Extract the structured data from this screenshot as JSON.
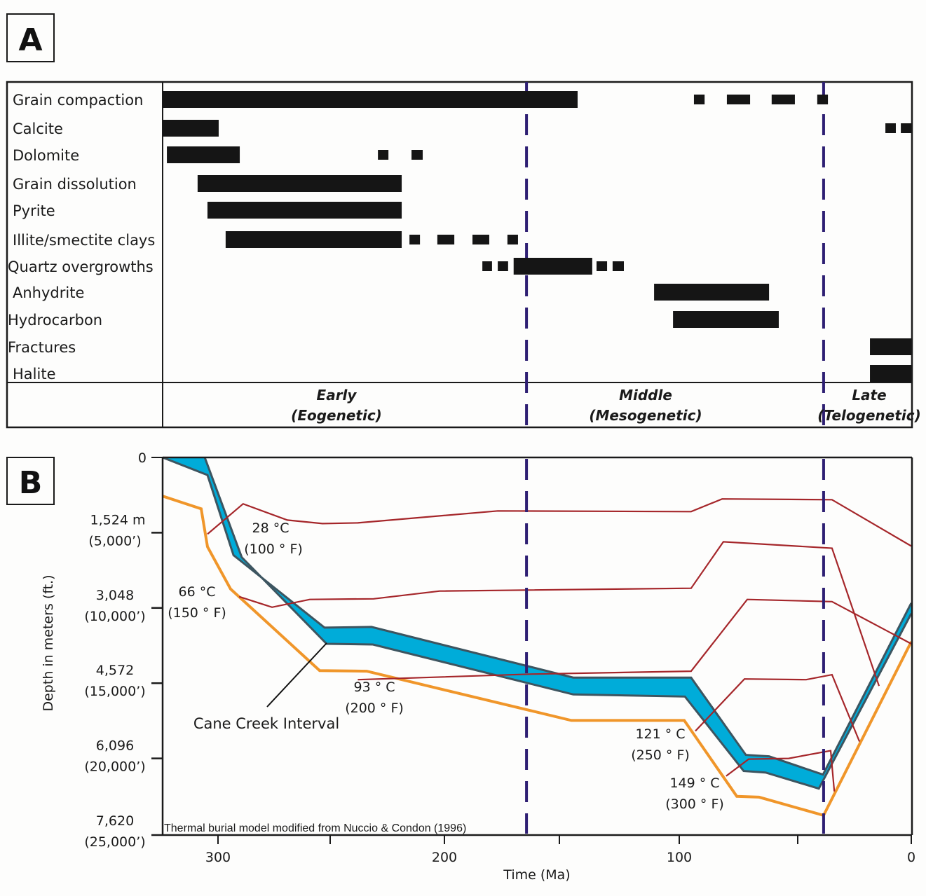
{
  "colors": {
    "bar": "#151515",
    "stage_divider": "#2e1f73",
    "cane_creek_fill": "#00acd9",
    "cane_creek_edge": "#3d5560",
    "orange_base": "#f0962a",
    "isotherm": "#a5262a",
    "frame": "#1a1a1a"
  },
  "chart_data": [
    {
      "type": "bar",
      "subtype": "gantt-timeline",
      "panel_label": "A",
      "title": "",
      "xlabel": "Time (Ma)",
      "xlim": [
        324.7,
        0
      ],
      "categories": [
        "Grain compaction",
        "Calcite",
        "Dolomite",
        "Grain dissolution",
        "Pyrite",
        "Illite/smectite clays",
        "Quartz overgrowths",
        "Anhydrite",
        "Hydrocarbon",
        "Fractures",
        "Halite"
      ],
      "series": [
        {
          "name": "Grain compaction",
          "solid": [
            [
              324.7,
              142.4
            ]
          ],
          "dashed": [
            [
              93.8,
              89.3
            ],
            [
              79.9,
              70.1
            ],
            [
              61.0,
              51.2
            ],
            [
              41.4,
              36.7
            ]
          ]
        },
        {
          "name": "Calcite",
          "solid": [
            [
              324.7,
              299.7
            ]
          ],
          "dashed": [
            [
              11.4,
              6.8
            ],
            [
              4.6,
              0
            ]
          ]
        },
        {
          "name": "Dolomite",
          "solid": [
            [
              322.8,
              290.3
            ]
          ],
          "dashed_small": [
            [
              229.1,
              224.5
            ],
            [
              214.4,
              209.5
            ]
          ]
        },
        {
          "name": "Grain dissolution",
          "solid": [
            [
              309.1,
              218.7
            ]
          ],
          "dashed": []
        },
        {
          "name": "Pyrite",
          "solid": [
            [
              304.7,
              218.7
            ]
          ],
          "dashed": []
        },
        {
          "name": "Illite/smectite clays",
          "solid": [
            [
              296.6,
              218.7
            ]
          ],
          "dashed": [
            [
              215.3,
              210.7
            ],
            [
              203.1,
              195.7
            ],
            [
              187.8,
              180.5
            ],
            [
              172.6,
              168.0
            ]
          ]
        },
        {
          "name": "Quartz overgrowths",
          "solid": [
            [
              169.9,
              136.3
            ]
          ],
          "dashed": [
            [
              183.5,
              179.3
            ],
            [
              176.8,
              172.3
            ],
            [
              134.5,
              130.1
            ],
            [
              127.8,
              123.1
            ]
          ]
        },
        {
          "name": "Anhydrite",
          "solid": [
            [
              110.5,
              62.1
            ]
          ],
          "dashed": []
        },
        {
          "name": "Hydrocarbon",
          "solid": [
            [
              102.6,
              58.0
            ]
          ],
          "dashed": []
        },
        {
          "name": "Fractures",
          "solid": [
            [
              18.2,
              0
            ]
          ],
          "dashed": []
        },
        {
          "name": "Halite",
          "solid": [
            [
              18.2,
              0
            ]
          ],
          "dashed": []
        }
      ],
      "stage_boundaries_ma": [
        164.3,
        38.6
      ],
      "stages": [
        {
          "name": "Early",
          "sub": "(Eogenetic)"
        },
        {
          "name": "Middle",
          "sub": "(Mesogenetic)"
        },
        {
          "name": "Late",
          "sub": "(Telogenetic)"
        }
      ]
    },
    {
      "type": "line",
      "subtype": "burial-history",
      "panel_label": "B",
      "xlabel": "Time (Ma)",
      "ylabel": "Depth in meters (ft.)",
      "xlim": [
        324.7,
        0
      ],
      "ylim": [
        0,
        7620
      ],
      "x_ticks": [
        300,
        250,
        200,
        150,
        100,
        50,
        0
      ],
      "x_tick_labels": [
        "300",
        "",
        "200",
        "",
        "100",
        "",
        "0"
      ],
      "y_ticks": [
        {
          "value": 0,
          "label": "0",
          "sub": ""
        },
        {
          "value": 1524,
          "label": "1,524 m",
          "sub": "(5,000’)"
        },
        {
          "value": 3048,
          "label": "3,048",
          "sub": "(10,000’)"
        },
        {
          "value": 4572,
          "label": "4,572",
          "sub": "(15,000’)"
        },
        {
          "value": 6096,
          "label": "6,096",
          "sub": "(20,000’)"
        },
        {
          "value": 7620,
          "label": "7,620",
          "sub": "(25,000’)"
        }
      ],
      "grid": false,
      "stage_boundaries_ma": [
        164.3,
        38.6
      ],
      "cane_creek_interval": {
        "name": "Cane Creek Interval",
        "top": [
          [
            324.7,
            0
          ],
          [
            304.7,
            356
          ],
          [
            293.1,
            1980
          ],
          [
            252.5,
            3447
          ],
          [
            231.9,
            3433
          ],
          [
            144.2,
            4458
          ],
          [
            95.0,
            4458
          ],
          [
            71.9,
            6025
          ],
          [
            62.1,
            6053
          ],
          [
            38.9,
            6424
          ],
          [
            0,
            2948
          ]
        ],
        "base": [
          [
            305.9,
            0
          ],
          [
            289.4,
            2022
          ],
          [
            251.6,
            3774
          ],
          [
            231.3,
            3789
          ],
          [
            144.2,
            4800
          ],
          [
            97.6,
            4843
          ],
          [
            72.8,
            6352
          ],
          [
            63.6,
            6381
          ],
          [
            40.7,
            6708
          ],
          [
            0,
            3162
          ]
        ]
      },
      "series": [
        {
          "name": "Deepest horizon (orange)",
          "points": [
            [
              324.7,
              783
            ],
            [
              307.5,
              1040
            ],
            [
              304.7,
              1809
            ],
            [
              294.4,
              2663
            ],
            [
              254.7,
              4316
            ],
            [
              234.0,
              4330
            ],
            [
              145.0,
              5327
            ],
            [
              97.9,
              5327
            ],
            [
              75.7,
              6865
            ],
            [
              66.3,
              6880
            ],
            [
              38.6,
              7250
            ],
            [
              0,
              3732
            ]
          ]
        },
        {
          "name": "28 °C isotherm",
          "points": [
            [
              304.7,
              1553
            ],
            [
              288.8,
              940
            ],
            [
              269.1,
              1268
            ],
            [
              253.4,
              1339
            ],
            [
              237.9,
              1325
            ],
            [
              176.8,
              1082
            ],
            [
              95.0,
              1097
            ],
            [
              81.9,
              840
            ],
            [
              34.9,
              855
            ],
            [
              0,
              1795
            ]
          ]
        },
        {
          "name": "66 °C isotherm",
          "points": [
            [
              290.6,
              2820
            ],
            [
              275.9,
              3034
            ],
            [
              259.1,
              2877
            ],
            [
              231.0,
              2863
            ],
            [
              202.1,
              2706
            ],
            [
              95.0,
              2649
            ],
            [
              81.4,
              1709
            ],
            [
              34.9,
              1837
            ],
            [
              14.2,
              4629
            ]
          ]
        },
        {
          "name": "93 °C isotherm",
          "points": [
            [
              237.9,
              4501
            ],
            [
              161.6,
              4387
            ],
            [
              95.0,
              4330
            ],
            [
              71.3,
              2877
            ],
            [
              34.9,
              2920
            ],
            [
              0,
              3774
            ]
          ]
        },
        {
          "name": "121 °C isotherm",
          "points": [
            [
              93.2,
              5541
            ],
            [
              72.5,
              4487
            ],
            [
              46.3,
              4501
            ],
            [
              34.9,
              4401
            ],
            [
              22.8,
              5754
            ]
          ]
        },
        {
          "name": "149 °C isotherm",
          "points": [
            [
              80.2,
              6452
            ],
            [
              70.7,
              6110
            ],
            [
              53.8,
              6096
            ],
            [
              35.5,
              5939
            ],
            [
              33.9,
              6765
            ]
          ]
        }
      ],
      "annotations": [
        {
          "id": "t28",
          "line1": "28 °C",
          "line2": "(100 ° F)"
        },
        {
          "id": "t66",
          "line1": "66 °C",
          "line2": "(150 ° F)"
        },
        {
          "id": "t93",
          "line1": "93 ° C",
          "line2": "(200 ° F)"
        },
        {
          "id": "t121",
          "line1": "121 ° C",
          "line2": "(250 ° F)"
        },
        {
          "id": "t149",
          "line1": "149 ° C",
          "line2": "(300 ° F)"
        },
        {
          "id": "cane",
          "line1": "Cane Creek Interval",
          "line2": ""
        }
      ],
      "source_note": "Thermal burial model modified from Nuccio & Condon (1996)"
    }
  ]
}
